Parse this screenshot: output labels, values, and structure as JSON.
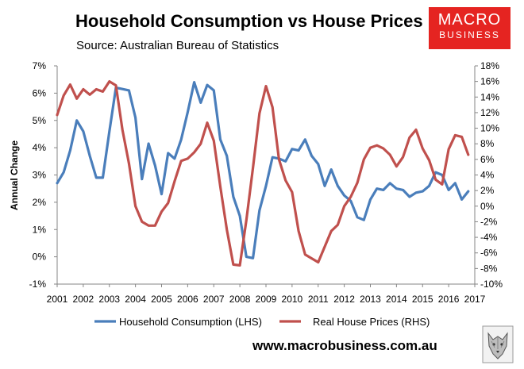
{
  "header": {
    "title": "Household Consumption vs House Prices",
    "subtitle": "Source: Australian Bureau of Statistics"
  },
  "logo": {
    "line1": "MACRO",
    "line2": "BUSINESS",
    "color": "#e52421"
  },
  "footer": {
    "website": "www.macrobusiness.com.au"
  },
  "chart_data": {
    "type": "line",
    "title": "Household Consumption vs House Prices",
    "ylabel": "Annual Change",
    "xlabel": "",
    "x_ticks": [
      "2001",
      "2002",
      "2003",
      "2004",
      "2005",
      "2006",
      "2007",
      "2008",
      "2009",
      "2010",
      "2011",
      "2012",
      "2013",
      "2014",
      "2015",
      "2016",
      "2017"
    ],
    "left_axis": {
      "ylim": [
        -1,
        7
      ],
      "ticks": [
        -1,
        0,
        1,
        2,
        3,
        4,
        5,
        6,
        7
      ],
      "tick_labels": [
        "-1%",
        "0%",
        "1%",
        "2%",
        "3%",
        "4%",
        "5%",
        "6%",
        "7%"
      ]
    },
    "right_axis": {
      "ylim": [
        -10,
        18
      ],
      "ticks": [
        -10,
        -8,
        -6,
        -4,
        -2,
        0,
        2,
        4,
        6,
        8,
        10,
        12,
        14,
        16,
        18
      ],
      "tick_labels": [
        "-10%",
        "-8%",
        "-6%",
        "-4%",
        "-2%",
        "0%",
        "2%",
        "4%",
        "6%",
        "8%",
        "10%",
        "12%",
        "14%",
        "16%",
        "18%"
      ]
    },
    "legend_position": "bottom",
    "series": [
      {
        "name": "Household Consumption (LHS)",
        "axis": "left",
        "color": "#4a7ebb",
        "x": [
          2001.0,
          2001.25,
          2001.5,
          2001.75,
          2002.0,
          2002.25,
          2002.5,
          2002.75,
          2003.0,
          2003.25,
          2003.5,
          2003.75,
          2004.0,
          2004.25,
          2004.5,
          2004.75,
          2005.0,
          2005.25,
          2005.5,
          2005.75,
          2006.0,
          2006.25,
          2006.5,
          2006.75,
          2007.0,
          2007.25,
          2007.5,
          2007.75,
          2008.0,
          2008.25,
          2008.5,
          2008.75,
          2009.0,
          2009.25,
          2009.5,
          2009.75,
          2010.0,
          2010.25,
          2010.5,
          2010.75,
          2011.0,
          2011.25,
          2011.5,
          2011.75,
          2012.0,
          2012.25,
          2012.5,
          2012.75,
          2013.0,
          2013.25,
          2013.5,
          2013.75,
          2014.0,
          2014.25,
          2014.5,
          2014.75,
          2015.0,
          2015.25,
          2015.5,
          2015.75,
          2016.0,
          2016.25,
          2016.5,
          2016.75
        ],
        "values": [
          2.7,
          3.1,
          3.9,
          5.0,
          4.6,
          3.7,
          2.9,
          2.9,
          4.6,
          6.2,
          6.15,
          6.1,
          5.1,
          2.85,
          4.15,
          3.35,
          2.3,
          3.8,
          3.6,
          4.3,
          5.3,
          6.4,
          5.65,
          6.3,
          6.1,
          4.3,
          3.7,
          2.2,
          1.5,
          0.0,
          -0.05,
          1.7,
          2.6,
          3.65,
          3.6,
          3.5,
          3.95,
          3.9,
          4.3,
          3.7,
          3.4,
          2.6,
          3.2,
          2.6,
          2.25,
          2.05,
          1.45,
          1.35,
          2.1,
          2.5,
          2.45,
          2.7,
          2.5,
          2.45,
          2.2,
          2.35,
          2.4,
          2.6,
          3.1,
          3.0,
          2.45,
          2.7,
          2.1,
          2.4
        ]
      },
      {
        "name": "Real House Prices (RHS)",
        "axis": "right",
        "color": "#c0504d",
        "x": [
          2001.0,
          2001.25,
          2001.5,
          2001.75,
          2002.0,
          2002.25,
          2002.5,
          2002.75,
          2003.0,
          2003.25,
          2003.5,
          2003.75,
          2004.0,
          2004.25,
          2004.5,
          2004.75,
          2005.0,
          2005.25,
          2005.5,
          2005.75,
          2006.0,
          2006.25,
          2006.5,
          2006.75,
          2007.0,
          2007.25,
          2007.5,
          2007.75,
          2008.0,
          2008.25,
          2008.5,
          2008.75,
          2009.0,
          2009.25,
          2009.5,
          2009.75,
          2010.0,
          2010.25,
          2010.5,
          2010.75,
          2011.0,
          2011.25,
          2011.5,
          2011.75,
          2012.0,
          2012.25,
          2012.5,
          2012.75,
          2013.0,
          2013.25,
          2013.5,
          2013.75,
          2014.0,
          2014.25,
          2014.5,
          2014.75,
          2015.0,
          2015.25,
          2015.5,
          2015.75,
          2016.0,
          2016.25,
          2016.5,
          2016.75
        ],
        "values": [
          11.7,
          14.2,
          15.6,
          13.8,
          15.0,
          14.3,
          15.0,
          14.7,
          16.0,
          15.5,
          9.8,
          5.5,
          0.0,
          -2.0,
          -2.5,
          -2.5,
          -0.7,
          0.4,
          3.2,
          5.8,
          6.1,
          6.9,
          8.0,
          10.7,
          8.4,
          2.5,
          -3.0,
          -7.5,
          -7.6,
          -1.8,
          4.9,
          11.9,
          15.4,
          12.7,
          6.0,
          3.3,
          1.8,
          -3.2,
          -6.2,
          -6.7,
          -7.2,
          -5.2,
          -3.2,
          -2.4,
          0.0,
          1.2,
          3.0,
          6.0,
          7.5,
          7.8,
          7.4,
          6.6,
          5.1,
          6.3,
          8.8,
          9.8,
          7.4,
          5.9,
          3.4,
          2.8,
          7.3,
          9.1,
          8.9,
          6.6
        ]
      }
    ]
  }
}
